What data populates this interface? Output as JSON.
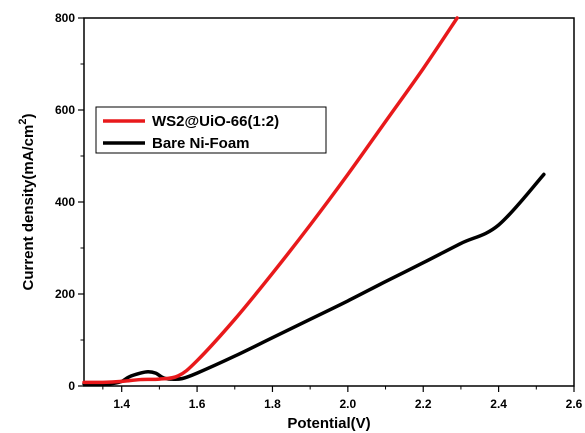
{
  "chart_data": {
    "type": "line",
    "title": "",
    "xlabel": "Potential(V)",
    "ylabel": "Current density(mA/cm",
    "ylabel_superscript": "2",
    "ylabel_suffix": ")",
    "xlim": [
      1.3,
      2.6
    ],
    "ylim": [
      0,
      800
    ],
    "xticks": [
      1.4,
      1.6,
      1.8,
      2.0,
      2.2,
      2.4,
      2.6
    ],
    "xtick_labels": [
      "1.4",
      "1.6",
      "1.8",
      "2.0",
      "2.2",
      "2.4",
      "2.6"
    ],
    "yticks": [
      0,
      200,
      400,
      600,
      800
    ],
    "ytick_labels": [
      "0",
      "200",
      "400",
      "600",
      "800"
    ],
    "grid": false,
    "legend_position": "upper-left",
    "series": [
      {
        "name": "WS2@UiO-66(1:2)",
        "color": "#e8191b",
        "x": [
          1.3,
          1.35,
          1.4,
          1.45,
          1.5,
          1.55,
          1.6,
          1.7,
          1.8,
          1.9,
          2.0,
          2.1,
          2.2,
          2.29
        ],
        "y": [
          8,
          8,
          10,
          14,
          15,
          22,
          55,
          145,
          245,
          350,
          460,
          575,
          690,
          800
        ]
      },
      {
        "name": "Bare Ni-Foam",
        "color": "#000000",
        "x": [
          1.3,
          1.37,
          1.4,
          1.42,
          1.45,
          1.47,
          1.49,
          1.51,
          1.53,
          1.56,
          1.6,
          1.7,
          1.8,
          1.9,
          2.0,
          2.1,
          2.2,
          2.3,
          2.4,
          2.52
        ],
        "y": [
          5,
          5,
          10,
          20,
          28,
          31,
          28,
          18,
          15,
          16,
          28,
          65,
          105,
          145,
          185,
          227,
          268,
          310,
          350,
          460
        ]
      }
    ]
  }
}
